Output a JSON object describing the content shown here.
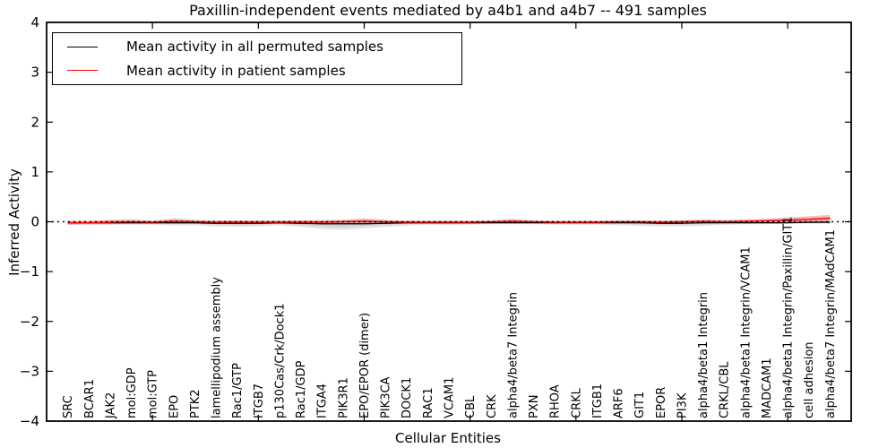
{
  "chart_data": {
    "type": "line",
    "title": "Paxillin-independent events mediated by a4b1 and a4b7 -- 491 samples",
    "xlabel": "Cellular Entities",
    "ylabel": "Inferred Activity",
    "ylim": [
      -4,
      4
    ],
    "yticks": [
      4,
      3,
      2,
      1,
      0,
      -1,
      -2,
      -3,
      -4
    ],
    "ytick_labels": [
      "4",
      "3",
      "2",
      "1",
      "0",
      "−1",
      "−2",
      "−3",
      "−4"
    ],
    "xticks": [
      5,
      10,
      15,
      20,
      25,
      30,
      35
    ],
    "grid": false,
    "zero_line": {
      "style": "dotted",
      "color": "#000000",
      "y": 0
    },
    "legend": {
      "position": "upper-left",
      "items": [
        {
          "label": "Mean activity in all permuted samples",
          "color": "#000000"
        },
        {
          "label": "Mean activity in patient samples",
          "color": "#ff0000"
        }
      ]
    },
    "categories": [
      "SRC",
      "BCAR1",
      "JAK2",
      "mol:GDP",
      "mol:GTP",
      "EPO",
      "PTK2",
      "lamellipodium assembly",
      "Rac1/GTP",
      "ITGB7",
      "p130Cas/Crk/Dock1",
      "Rac1/GDP",
      "ITGA4",
      "PIK3R1",
      "EPO/EPOR (dimer)",
      "PIK3CA",
      "DOCK1",
      "RAC1",
      "VCAM1",
      "CBL",
      "CRK",
      "alpha4/beta7 Integrin",
      "PXN",
      "RHOA",
      "CRKL",
      "ITGB1",
      "ARF6",
      "GIT1",
      "EPOR",
      "PI3K",
      "alpha4/beta1 Integrin",
      "CRKL/CBL",
      "alpha4/beta1 Integrin/VCAM1",
      "MADCAM1",
      "alpha4/beta1 Integrin/Paxillin/GIT1",
      "cell adhesion",
      "alpha4/beta7 Integrin/MAdCAM1"
    ],
    "series": [
      {
        "name": "Mean activity in all permuted samples",
        "color": "#000000",
        "band_color": "#9a9a9a",
        "mean": [
          -0.02,
          -0.02,
          -0.02,
          -0.02,
          -0.02,
          -0.02,
          -0.02,
          -0.03,
          -0.03,
          -0.03,
          -0.02,
          -0.03,
          -0.04,
          -0.04,
          -0.04,
          -0.03,
          -0.02,
          -0.02,
          -0.02,
          -0.02,
          -0.02,
          -0.02,
          -0.02,
          -0.02,
          -0.02,
          -0.02,
          -0.02,
          -0.02,
          -0.03,
          -0.03,
          -0.02,
          -0.02,
          -0.02,
          -0.02,
          -0.02,
          -0.01,
          -0.01
        ],
        "band_lo": [
          -0.06,
          -0.06,
          -0.06,
          -0.06,
          -0.06,
          -0.07,
          -0.07,
          -0.09,
          -0.1,
          -0.09,
          -0.07,
          -0.1,
          -0.14,
          -0.16,
          -0.13,
          -0.1,
          -0.08,
          -0.06,
          -0.07,
          -0.06,
          -0.05,
          -0.05,
          -0.05,
          -0.06,
          -0.06,
          -0.06,
          -0.07,
          -0.08,
          -0.09,
          -0.09,
          -0.08,
          -0.06,
          -0.05,
          -0.05,
          -0.04,
          -0.04,
          -0.04
        ],
        "band_hi": [
          0.02,
          0.02,
          0.02,
          0.02,
          0.02,
          0.03,
          0.02,
          0.03,
          0.03,
          0.03,
          0.03,
          0.03,
          0.03,
          0.03,
          0.03,
          0.03,
          0.02,
          0.02,
          0.02,
          0.02,
          0.02,
          0.02,
          0.02,
          0.02,
          0.02,
          0.02,
          0.02,
          0.02,
          0.02,
          0.02,
          0.02,
          0.02,
          0.02,
          0.02,
          0.02,
          0.02,
          0.02
        ]
      },
      {
        "name": "Mean activity in patient samples",
        "color": "#ff0000",
        "band_color": "#e53935",
        "mean": [
          -0.02,
          -0.02,
          -0.01,
          0.0,
          -0.01,
          0.01,
          0.0,
          -0.01,
          -0.01,
          -0.01,
          -0.01,
          -0.01,
          -0.01,
          0.0,
          0.01,
          0.0,
          -0.01,
          -0.01,
          -0.01,
          -0.01,
          0.0,
          0.01,
          0.0,
          -0.01,
          -0.01,
          -0.01,
          0.0,
          0.0,
          -0.01,
          0.0,
          0.01,
          0.0,
          0.01,
          0.02,
          0.03,
          0.05,
          0.07
        ],
        "band_lo": [
          -0.06,
          -0.05,
          -0.05,
          -0.04,
          -0.04,
          -0.04,
          -0.04,
          -0.04,
          -0.05,
          -0.04,
          -0.04,
          -0.05,
          -0.04,
          -0.04,
          -0.04,
          -0.04,
          -0.04,
          -0.04,
          -0.04,
          -0.04,
          -0.03,
          -0.03,
          -0.03,
          -0.03,
          -0.03,
          -0.03,
          -0.03,
          -0.03,
          -0.03,
          -0.03,
          -0.03,
          -0.03,
          -0.02,
          -0.02,
          -0.01,
          -0.01,
          -0.02
        ],
        "band_hi": [
          0.02,
          0.02,
          0.04,
          0.05,
          0.02,
          0.07,
          0.04,
          0.02,
          0.03,
          0.02,
          0.02,
          0.03,
          0.03,
          0.04,
          0.07,
          0.04,
          0.02,
          0.02,
          0.02,
          0.02,
          0.03,
          0.06,
          0.03,
          0.02,
          0.02,
          0.02,
          0.03,
          0.03,
          0.02,
          0.03,
          0.05,
          0.04,
          0.05,
          0.06,
          0.09,
          0.11,
          0.14
        ]
      }
    ]
  }
}
